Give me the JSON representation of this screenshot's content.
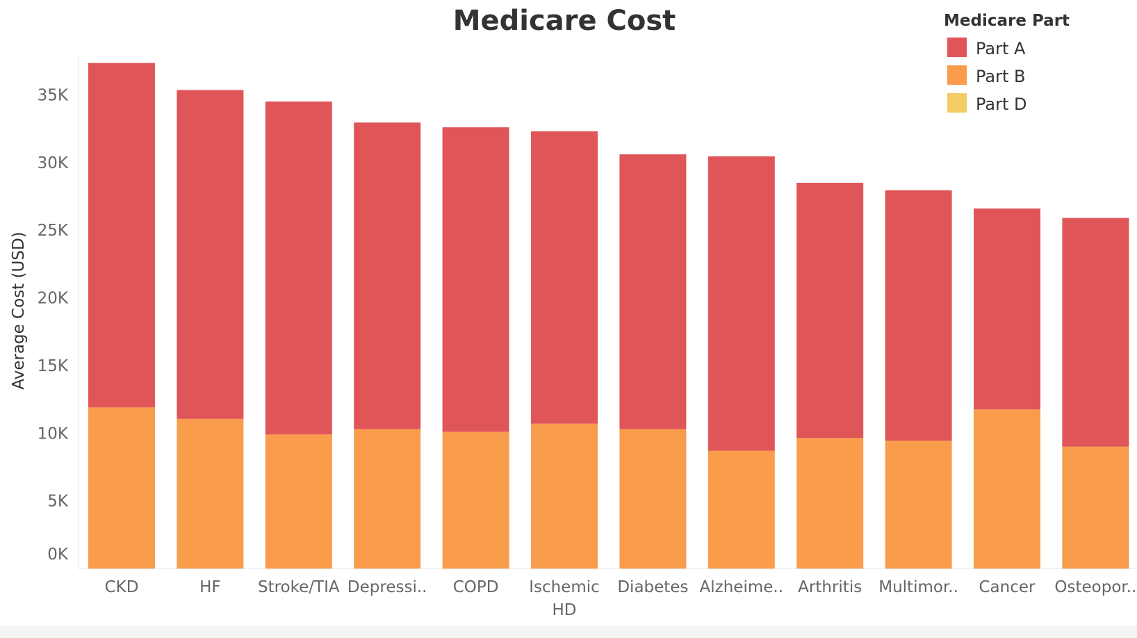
{
  "chart_data": {
    "type": "bar",
    "stacked": true,
    "title": "Medicare Cost",
    "xlabel": "",
    "ylabel": "Average Cost (USD)",
    "ylim": [
      0,
      38000
    ],
    "yticks": [
      0,
      5000,
      10000,
      15000,
      20000,
      25000,
      30000,
      35000
    ],
    "ytick_labels": [
      "0K",
      "5K",
      "10K",
      "15K",
      "20K",
      "25K",
      "30K",
      "35K"
    ],
    "categories": [
      [
        "CKD"
      ],
      [
        "HF"
      ],
      [
        "Stroke/TIA"
      ],
      [
        "Depressi.."
      ],
      [
        "COPD"
      ],
      [
        "Ischemic",
        "HD"
      ],
      [
        "Diabetes"
      ],
      [
        "Alzheime.."
      ],
      [
        "Arthritis"
      ],
      [
        "Multimor.."
      ],
      [
        "Cancer"
      ],
      [
        "Osteopor.."
      ]
    ],
    "series": [
      {
        "name": "Part B",
        "color": "#f99c4c",
        "values": [
          11900,
          11050,
          9900,
          10300,
          10100,
          10700,
          10300,
          8700,
          9650,
          9450,
          11750,
          9000
        ]
      },
      {
        "name": "Part A",
        "color": "#e05658",
        "values": [
          25450,
          24300,
          24600,
          22650,
          22500,
          21600,
          20300,
          21750,
          18850,
          18500,
          14850,
          16900
        ]
      },
      {
        "name": "Part D",
        "color": "#f3cd64",
        "values": [
          0,
          0,
          0,
          0,
          0,
          0,
          0,
          0,
          0,
          0,
          0,
          0
        ]
      }
    ],
    "legend": {
      "title": "Medicare Part",
      "position": "top-right",
      "entries": [
        {
          "label": "Part A",
          "color": "#e05658"
        },
        {
          "label": "Part B",
          "color": "#f99c4c"
        },
        {
          "label": "Part D",
          "color": "#f3cd64"
        }
      ]
    },
    "grid": false
  }
}
